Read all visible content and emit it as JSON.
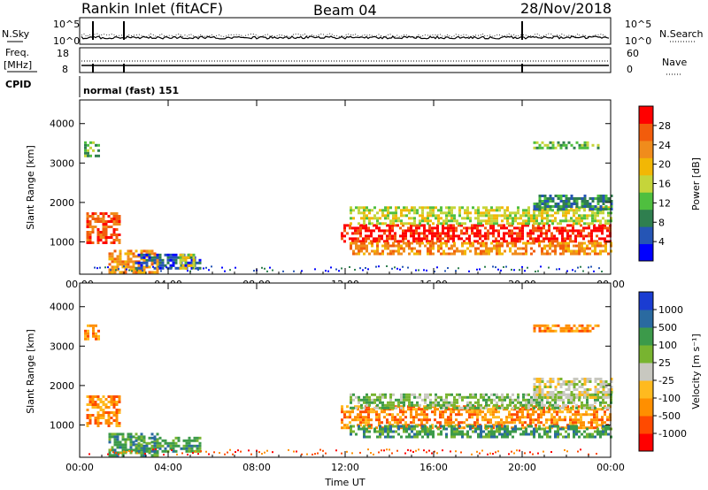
{
  "header": {
    "station": "Rankin Inlet (fitACF)",
    "beam": "Beam 04",
    "date": "28/Nov/2018"
  },
  "summary": {
    "nsky_label": "N.Sky",
    "nsearch_label": "N.Search",
    "freq_label_top": "Freq.",
    "freq_label_units": "[MHz]",
    "nave_label": "Nave",
    "cpid_label": "CPID",
    "cpid_value": "normal (fast) 151",
    "nsky_ticks": [
      "10^5",
      "10^0"
    ],
    "nsearch_ticks": [
      "10^5",
      "10^0"
    ],
    "freq_ticks": [
      "18",
      "8"
    ],
    "nave_ticks": [
      "60",
      "0"
    ]
  },
  "colors": {
    "power": [
      "#0000ff",
      "#2555b5",
      "#2f7f4f",
      "#4fbf3f",
      "#c5d53a",
      "#f2b705",
      "#f08c1c",
      "#f25c0c",
      "#ff0000"
    ],
    "velocity": [
      "#ff0000",
      "#ff4a00",
      "#ff8f00",
      "#ffba1f",
      "#c8c8c0",
      "#78b430",
      "#3c9a4a",
      "#2a6aa0",
      "#1a3cd2"
    ]
  },
  "chart_data": [
    {
      "type": "heatmap",
      "parameter": "Power",
      "ylabel": "Slant Range [km]",
      "ylim": [
        180,
        4600
      ],
      "yticks": [
        1000,
        2000,
        3000,
        4000
      ],
      "xlim": [
        0,
        24
      ],
      "xticks": [
        "00:00",
        "04:00",
        "08:00",
        "12:00",
        "16:00",
        "20:00",
        "00:00"
      ],
      "colorbar": {
        "label": "Power [dB]",
        "ticks": [
          "28",
          "24",
          "20",
          "16",
          "12",
          "8",
          "4"
        ]
      },
      "regions": [
        {
          "t": [
            0.3,
            1.8
          ],
          "r": [
            1000,
            1750
          ],
          "level": 7
        },
        {
          "t": [
            1.3,
            3.5
          ],
          "r": [
            250,
            800
          ],
          "level": 6
        },
        {
          "t": [
            0.2,
            0.9
          ],
          "r": [
            3150,
            3550
          ],
          "level": 3
        },
        {
          "t": [
            2.5,
            5.5
          ],
          "r": [
            300,
            700
          ],
          "level": 1
        },
        {
          "t": [
            4.5,
            5.2
          ],
          "r": [
            300,
            700
          ],
          "level": 4
        },
        {
          "t": [
            11.8,
            24.0
          ],
          "r": [
            1000,
            1450
          ],
          "level": 8
        },
        {
          "t": [
            12.2,
            24.0
          ],
          "r": [
            700,
            1000
          ],
          "level": 6
        },
        {
          "t": [
            12.2,
            24.0
          ],
          "r": [
            1450,
            1900
          ],
          "level": 4
        },
        {
          "t": [
            20.5,
            24.0
          ],
          "r": [
            1800,
            2200
          ],
          "level": 2
        },
        {
          "t": [
            20.5,
            23.5
          ],
          "r": [
            3350,
            3550
          ],
          "level": 3
        }
      ]
    },
    {
      "type": "heatmap",
      "parameter": "Velocity",
      "ylabel": "Slant Range [km]",
      "ylim": [
        180,
        4600
      ],
      "yticks": [
        1000,
        2000,
        3000,
        4000
      ],
      "xlim": [
        0,
        24
      ],
      "xticks": [
        "00:00",
        "04:00",
        "08:00",
        "12:00",
        "16:00",
        "20:00",
        "00:00"
      ],
      "xlabel": "Time UT",
      "colorbar": {
        "label": "Velocity [m s⁻¹]",
        "ticks": [
          "1000",
          "500",
          "100",
          "25",
          "-25",
          "-100",
          "-500",
          "-1000"
        ]
      },
      "regions": [
        {
          "t": [
            0.3,
            1.8
          ],
          "r": [
            1000,
            1750
          ],
          "level": 2
        },
        {
          "t": [
            1.3,
            3.5
          ],
          "r": [
            250,
            800
          ],
          "level": 6
        },
        {
          "t": [
            0.2,
            0.9
          ],
          "r": [
            3150,
            3550
          ],
          "level": 2
        },
        {
          "t": [
            2.5,
            5.5
          ],
          "r": [
            300,
            700
          ],
          "level": 6
        },
        {
          "t": [
            11.8,
            24.0
          ],
          "r": [
            900,
            1500
          ],
          "level": 2
        },
        {
          "t": [
            12.2,
            24.0
          ],
          "r": [
            700,
            1000
          ],
          "level": 6
        },
        {
          "t": [
            12.2,
            24.0
          ],
          "r": [
            1450,
            1800
          ],
          "level": 5
        },
        {
          "t": [
            20.5,
            24.0
          ],
          "r": [
            1700,
            2200
          ],
          "level": 4
        },
        {
          "t": [
            20.5,
            23.5
          ],
          "r": [
            3350,
            3550
          ],
          "level": 2
        }
      ]
    }
  ]
}
